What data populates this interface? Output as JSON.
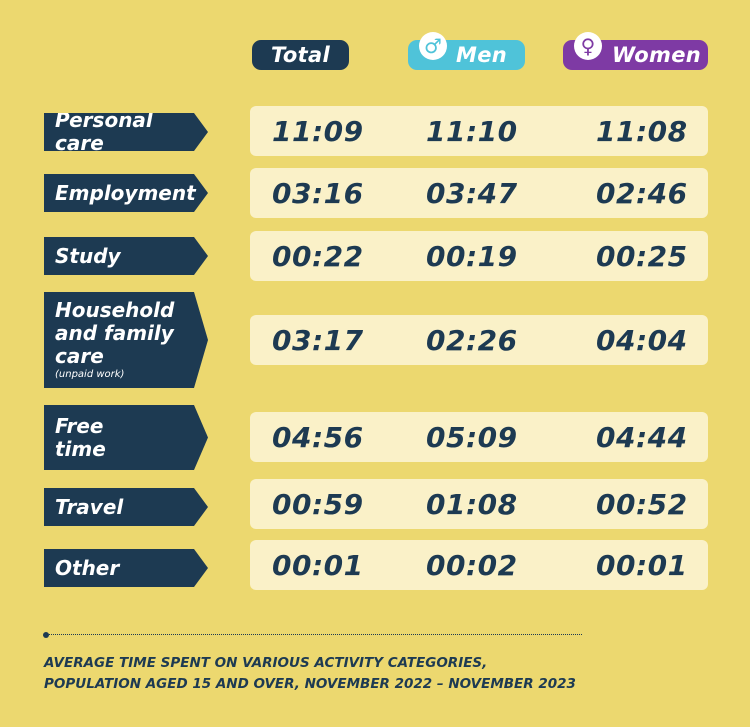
{
  "chart_data": {
    "type": "table",
    "columns": [
      "Total",
      "Men",
      "Women"
    ],
    "rows": [
      {
        "category": "Personal care",
        "note": "",
        "values": [
          "11:09",
          "11:10",
          "11:08"
        ]
      },
      {
        "category": "Employment",
        "note": "",
        "values": [
          "03:16",
          "03:47",
          "02:46"
        ]
      },
      {
        "category": "Study",
        "note": "",
        "values": [
          "00:22",
          "00:19",
          "00:25"
        ]
      },
      {
        "category": "Household and family care",
        "note": "(unpaid work)",
        "values": [
          "03:17",
          "02:26",
          "04:04"
        ]
      },
      {
        "category": "Free time",
        "note": "",
        "values": [
          "04:56",
          "05:09",
          "04:44"
        ]
      },
      {
        "category": "Travel",
        "note": "",
        "values": [
          "00:59",
          "01:08",
          "00:52"
        ]
      },
      {
        "category": "Other",
        "note": "",
        "values": [
          "00:01",
          "00:02",
          "00:01"
        ]
      }
    ]
  },
  "headers": {
    "total": "Total",
    "men": "Men",
    "women": "Women"
  },
  "labels": {
    "personal_care": "Personal care",
    "employment": "Employment",
    "study": "Study",
    "household_l1": "Household",
    "household_l2": "and family",
    "household_l3": "care",
    "household_note": "(unpaid work)",
    "free_l1": "Free",
    "free_l2": "time",
    "travel": "Travel",
    "other": "Other"
  },
  "caption": {
    "line1": "AVERAGE TIME SPENT ON VARIOUS ACTIVITY CATEGORIES,",
    "line2": "POPULATION AGED 15 AND OVER, NOVEMBER 2022 – NOVEMBER 2023"
  },
  "colors": {
    "background": "#ecd86f",
    "navy": "#1d3a52",
    "men": "#4fc3d9",
    "women": "#7e3aa4",
    "row_box": "#faf1c8"
  },
  "icons": {
    "men": "male-symbol-icon",
    "women": "female-symbol-icon"
  }
}
